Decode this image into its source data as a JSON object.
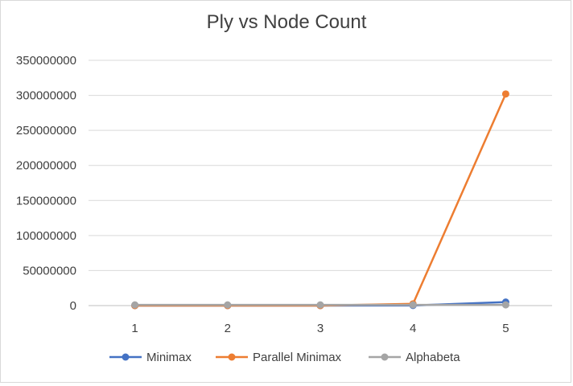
{
  "chart_data": {
    "type": "line",
    "title": "Ply vs Node Count",
    "xlabel": "",
    "ylabel": "",
    "categories": [
      "1",
      "2",
      "3",
      "4",
      "5"
    ],
    "ylim": [
      0,
      350000000
    ],
    "yticks": [
      "0",
      "50000000",
      "100000000",
      "150000000",
      "200000000",
      "250000000",
      "300000000",
      "350000000"
    ],
    "grid": true,
    "legend_position": "bottom",
    "series": [
      {
        "name": "Minimax",
        "color": "#4472c4",
        "values": [
          20,
          400,
          9000,
          200000,
          5000000
        ]
      },
      {
        "name": "Parallel Minimax",
        "color": "#ed7d31",
        "values": [
          0,
          0,
          0,
          2500000,
          302000000
        ]
      },
      {
        "name": "Alphabeta",
        "color": "#a5a5a5",
        "values": [
          1000000,
          1000000,
          1000000,
          1000000,
          1000000
        ]
      }
    ]
  }
}
